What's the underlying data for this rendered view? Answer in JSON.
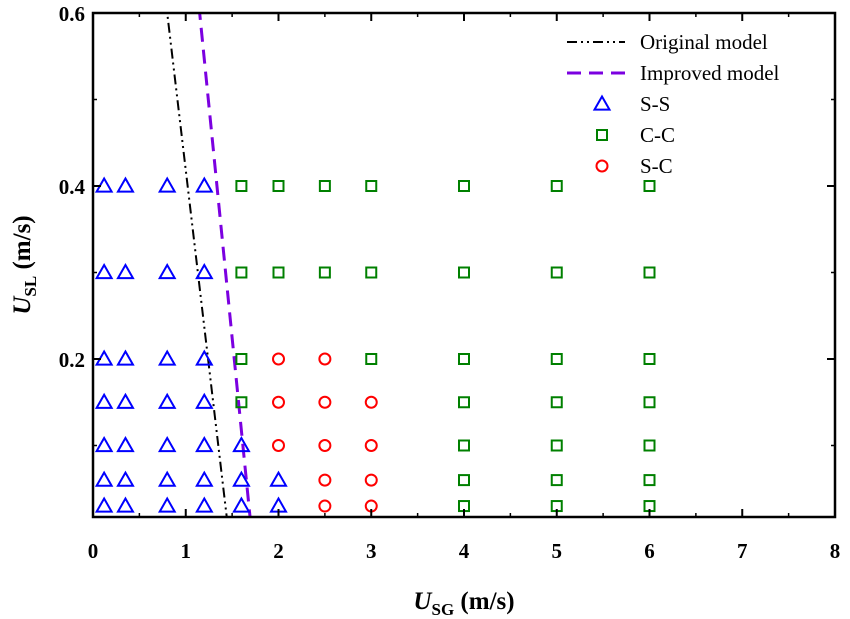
{
  "chart_data": {
    "type": "scatter",
    "title": "",
    "xlabel": {
      "main": "U",
      "sub": "SG",
      "unit": " (m/s)"
    },
    "ylabel": {
      "main": "U",
      "sub": "SL",
      "unit": " (m/s)"
    },
    "xlim": [
      0,
      8
    ],
    "ylim": [
      0.01,
      0.6
    ],
    "x_ticks": [
      0,
      1,
      2,
      3,
      4,
      5,
      6,
      7,
      8
    ],
    "x_tick_labels": [
      "0",
      "1",
      "2",
      "3",
      "4",
      "5",
      "6",
      "7",
      "8"
    ],
    "y_ticks": [
      0.2,
      0.4,
      0.6
    ],
    "y_tick_labels": [
      "0.2",
      "0.4",
      "0.6"
    ],
    "legend_position": "top-right",
    "lines": [
      {
        "name": "Original model",
        "style": "dash-dot-dot",
        "color": "#000000",
        "points": [
          [
            1.45,
            0.01
          ],
          [
            0.8,
            0.6
          ]
        ]
      },
      {
        "name": "Improved model",
        "style": "dashed",
        "color": "#7b00e0",
        "points": [
          [
            1.7,
            0.01
          ],
          [
            1.15,
            0.6
          ]
        ]
      }
    ],
    "series": [
      {
        "name": "S-S",
        "marker": "triangle",
        "color": "#0000ff",
        "points": [
          [
            0.12,
            0.4
          ],
          [
            0.35,
            0.4
          ],
          [
            0.8,
            0.4
          ],
          [
            1.2,
            0.4
          ],
          [
            0.12,
            0.3
          ],
          [
            0.35,
            0.3
          ],
          [
            0.8,
            0.3
          ],
          [
            1.2,
            0.3
          ],
          [
            0.12,
            0.2
          ],
          [
            0.35,
            0.2
          ],
          [
            0.8,
            0.2
          ],
          [
            1.2,
            0.2
          ],
          [
            0.12,
            0.15
          ],
          [
            0.35,
            0.15
          ],
          [
            0.8,
            0.15
          ],
          [
            1.2,
            0.15
          ],
          [
            0.12,
            0.1
          ],
          [
            0.35,
            0.1
          ],
          [
            0.8,
            0.1
          ],
          [
            1.2,
            0.1
          ],
          [
            1.6,
            0.1
          ],
          [
            0.12,
            0.06
          ],
          [
            0.35,
            0.06
          ],
          [
            0.8,
            0.06
          ],
          [
            1.2,
            0.06
          ],
          [
            1.6,
            0.06
          ],
          [
            2.0,
            0.06
          ],
          [
            0.12,
            0.03
          ],
          [
            0.35,
            0.03
          ],
          [
            0.8,
            0.03
          ],
          [
            1.2,
            0.03
          ],
          [
            1.6,
            0.03
          ],
          [
            2.0,
            0.03
          ]
        ]
      },
      {
        "name": "C-C",
        "marker": "square",
        "color": "#008000",
        "points": [
          [
            1.6,
            0.4
          ],
          [
            2.0,
            0.4
          ],
          [
            2.5,
            0.4
          ],
          [
            3.0,
            0.4
          ],
          [
            4.0,
            0.4
          ],
          [
            5.0,
            0.4
          ],
          [
            6.0,
            0.4
          ],
          [
            1.6,
            0.3
          ],
          [
            2.0,
            0.3
          ],
          [
            2.5,
            0.3
          ],
          [
            3.0,
            0.3
          ],
          [
            4.0,
            0.3
          ],
          [
            5.0,
            0.3
          ],
          [
            6.0,
            0.3
          ],
          [
            1.6,
            0.2
          ],
          [
            3.0,
            0.2
          ],
          [
            4.0,
            0.2
          ],
          [
            5.0,
            0.2
          ],
          [
            6.0,
            0.2
          ],
          [
            1.6,
            0.15
          ],
          [
            4.0,
            0.15
          ],
          [
            5.0,
            0.15
          ],
          [
            6.0,
            0.15
          ],
          [
            4.0,
            0.1
          ],
          [
            5.0,
            0.1
          ],
          [
            6.0,
            0.1
          ],
          [
            4.0,
            0.06
          ],
          [
            5.0,
            0.06
          ],
          [
            6.0,
            0.06
          ],
          [
            4.0,
            0.03
          ],
          [
            5.0,
            0.03
          ],
          [
            6.0,
            0.03
          ]
        ]
      },
      {
        "name": "S-C",
        "marker": "circle",
        "color": "#ff0000",
        "points": [
          [
            2.0,
            0.2
          ],
          [
            2.5,
            0.2
          ],
          [
            2.0,
            0.15
          ],
          [
            2.5,
            0.15
          ],
          [
            3.0,
            0.15
          ],
          [
            2.0,
            0.1
          ],
          [
            2.5,
            0.1
          ],
          [
            3.0,
            0.1
          ],
          [
            2.5,
            0.06
          ],
          [
            3.0,
            0.06
          ],
          [
            2.5,
            0.03
          ],
          [
            3.0,
            0.03
          ]
        ]
      }
    ]
  }
}
